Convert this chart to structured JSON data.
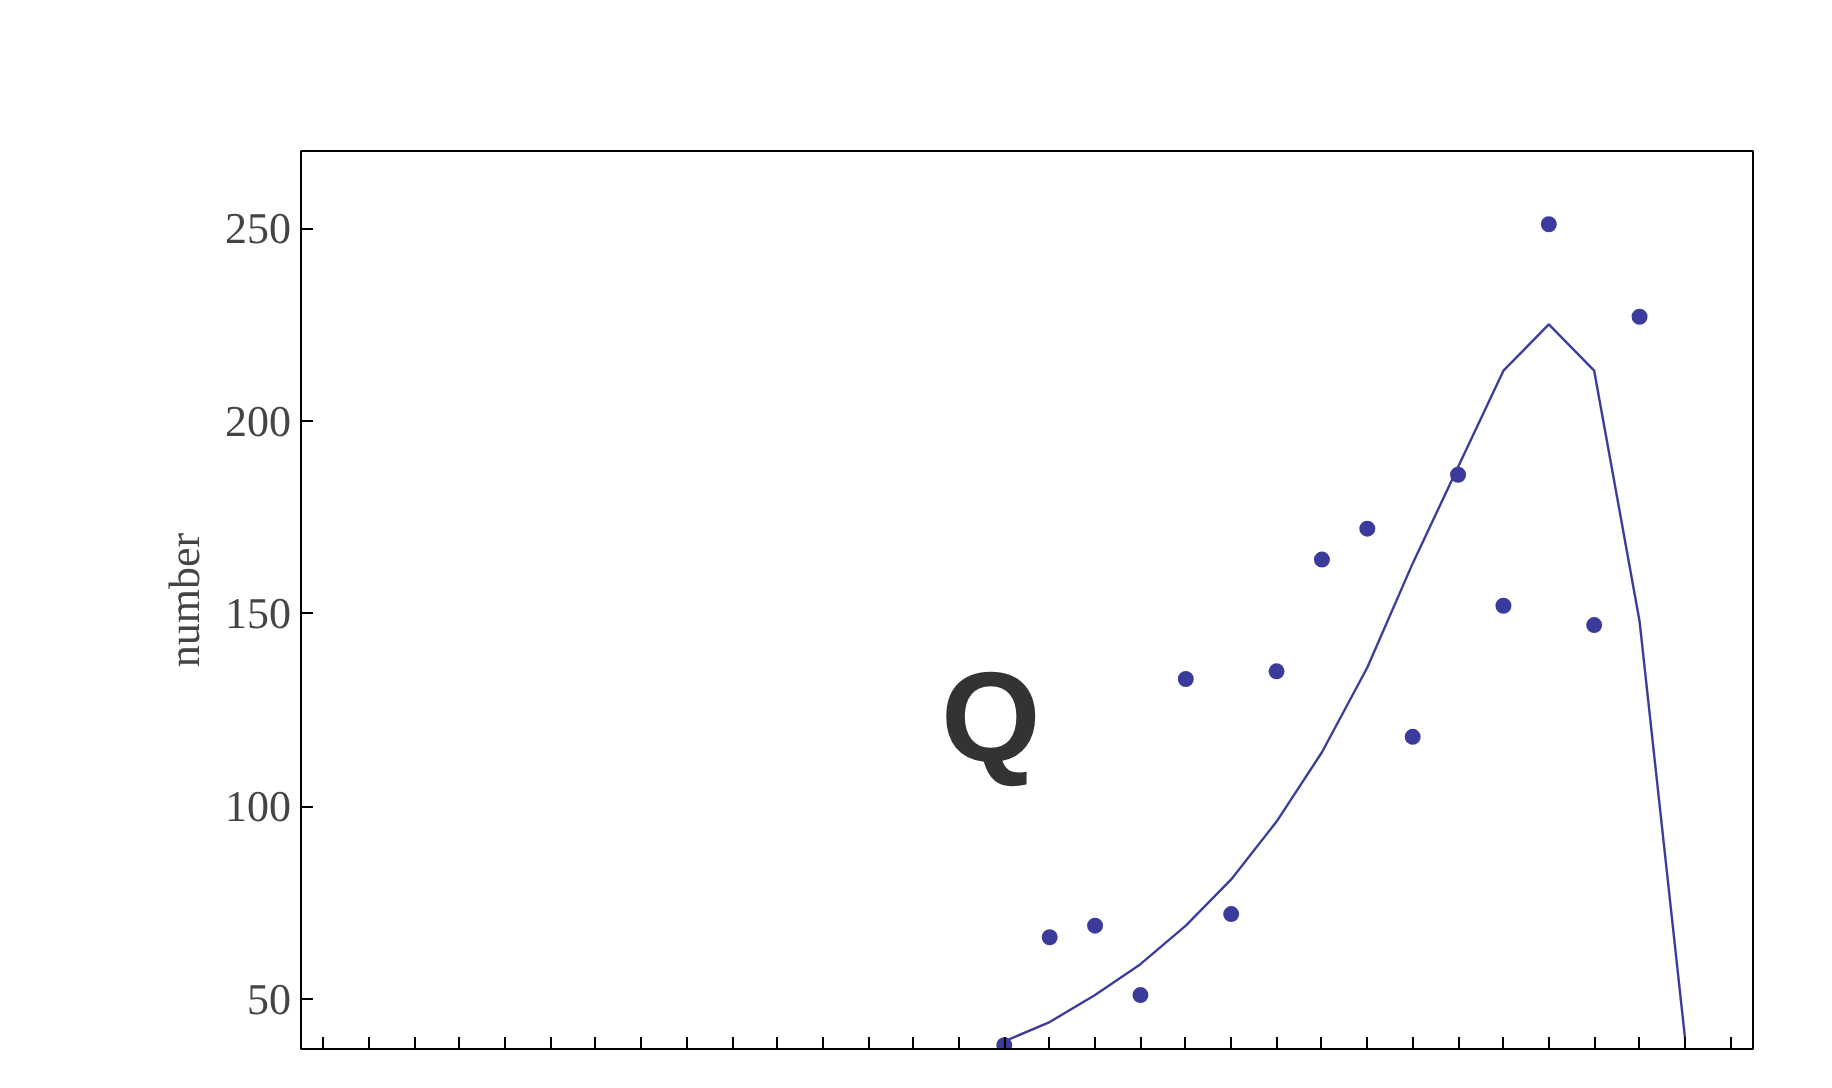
{
  "chart_data": {
    "type": "scatter",
    "ylabel": "number",
    "annotations": [
      "Q"
    ],
    "categories": [
      null,
      null,
      null,
      null,
      null,
      null,
      null,
      null,
      null,
      null,
      null,
      null,
      null,
      null,
      null,
      null,
      null,
      null,
      null,
      null,
      null,
      null,
      null,
      null,
      null,
      null,
      null,
      null,
      null,
      null,
      null,
      null
    ],
    "ylim": [
      37,
      270
    ],
    "yticks": [
      50,
      100,
      150,
      200,
      250
    ],
    "grid": false,
    "series": [
      {
        "color": "#3b3b9c",
        "marker": "circle",
        "values": [
          null,
          null,
          null,
          null,
          null,
          null,
          null,
          null,
          null,
          null,
          null,
          null,
          null,
          null,
          null,
          38,
          66,
          69,
          51,
          133,
          72,
          135,
          164,
          172,
          118,
          186,
          152,
          251,
          147,
          227,
          null,
          null
        ]
      },
      {
        "type": "line",
        "color": "#3b3b9c",
        "marker": "none",
        "line_style": "solid",
        "values": [
          null,
          null,
          null,
          null,
          null,
          null,
          null,
          null,
          null,
          null,
          null,
          null,
          null,
          null,
          null,
          39,
          44,
          51,
          59,
          69,
          81,
          96,
          114,
          136,
          163,
          188,
          213,
          225,
          213,
          148,
          40,
          null
        ]
      }
    ]
  }
}
